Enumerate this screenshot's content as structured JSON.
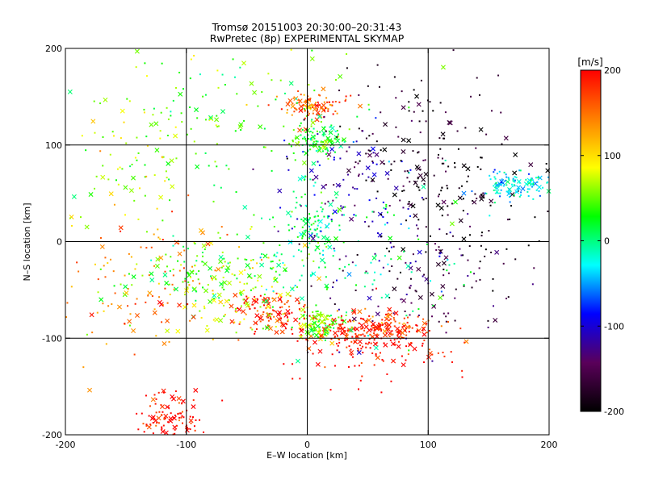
{
  "chart_data": {
    "type": "scatter",
    "title": "Tromsø 20151003 20:30:00–20:31:43",
    "subtitle": "RwPretec (8p) EXPERIMENTAL SKYMAP",
    "xlabel": "E–W location [km]",
    "ylabel": "N–S location [km]",
    "xlim": [
      -200,
      200
    ],
    "ylim": [
      -200,
      200
    ],
    "xticks": [
      -200,
      -100,
      0,
      100,
      200
    ],
    "yticks": [
      -200,
      -100,
      0,
      100,
      200
    ],
    "grid": true,
    "colorbar": {
      "label": "[m/s]",
      "range": [
        -200,
        200
      ],
      "ticks": [
        200,
        100,
        0,
        -100,
        -200
      ],
      "colors": [
        "#000000",
        "#5a005a",
        "#0000ff",
        "#00ffff",
        "#00ff00",
        "#ffff00",
        "#ff8000",
        "#ff0000"
      ]
    },
    "markers": [
      "dot",
      "x"
    ],
    "clusters": [
      {
        "x": 5,
        "y": 10,
        "spread": [
          10,
          25
        ],
        "value": 10
      },
      {
        "x": 10,
        "y": 105,
        "spread": [
          12,
          10
        ],
        "value": 25
      },
      {
        "x": 5,
        "y": 140,
        "spread": [
          12,
          8
        ],
        "value": 160
      },
      {
        "x": 30,
        "y": -95,
        "spread": [
          22,
          7
        ],
        "value": 195
      },
      {
        "x": 10,
        "y": -85,
        "spread": [
          10,
          8
        ],
        "value": 60
      },
      {
        "x": 70,
        "y": -88,
        "spread": [
          18,
          6
        ],
        "value": 170
      },
      {
        "x": 60,
        "y": -110,
        "spread": [
          30,
          18
        ],
        "value": 200
      },
      {
        "x": -30,
        "y": -75,
        "spread": [
          15,
          10
        ],
        "value": 185
      },
      {
        "x": -115,
        "y": -185,
        "spread": [
          15,
          15
        ],
        "value": 200
      },
      {
        "x": -80,
        "y": -30,
        "spread": [
          35,
          20
        ],
        "value": 30
      },
      {
        "x": -60,
        "y": -50,
        "spread": [
          30,
          20
        ],
        "value": 80
      },
      {
        "x": 40,
        "y": 50,
        "spread": [
          30,
          40
        ],
        "value": -110
      },
      {
        "x": 80,
        "y": 100,
        "spread": [
          40,
          40
        ],
        "value": -175
      },
      {
        "x": 120,
        "y": 40,
        "spread": [
          40,
          40
        ],
        "value": -190
      },
      {
        "x": 170,
        "y": 60,
        "spread": [
          15,
          8
        ],
        "value": -30
      },
      {
        "x": 100,
        "y": -40,
        "spread": [
          40,
          30
        ],
        "value": -150
      },
      {
        "x": -150,
        "y": 80,
        "spread": [
          40,
          60
        ],
        "value": 60
      },
      {
        "x": -140,
        "y": -50,
        "spread": [
          40,
          40
        ],
        "value": 150
      },
      {
        "x": -60,
        "y": 140,
        "spread": [
          60,
          40
        ],
        "value": 40
      },
      {
        "x": 40,
        "y": -20,
        "spread": [
          50,
          40
        ],
        "value": 0
      }
    ],
    "scattered_points": 2200
  }
}
